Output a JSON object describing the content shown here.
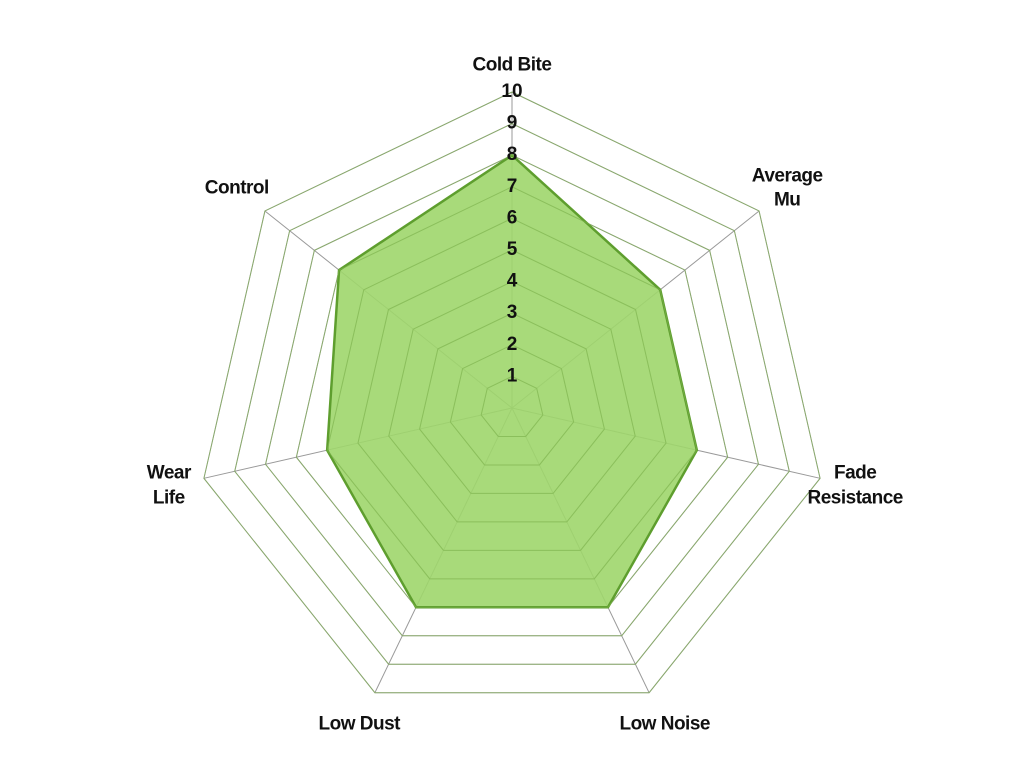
{
  "chart_data": {
    "type": "radar",
    "categories": [
      "Cold Bite",
      "Average Mu",
      "Fade Resistance",
      "Low Noise",
      "Low Dust",
      "Wear Life",
      "Control"
    ],
    "values": [
      8,
      6,
      6,
      7,
      7,
      6,
      7
    ],
    "color": "#5e9e2e",
    "fill": "#9fd66b",
    "ylim": [
      0,
      10
    ],
    "yticks": [
      1,
      2,
      3,
      4,
      5,
      6,
      7,
      8,
      9,
      10
    ],
    "grid": true
  }
}
